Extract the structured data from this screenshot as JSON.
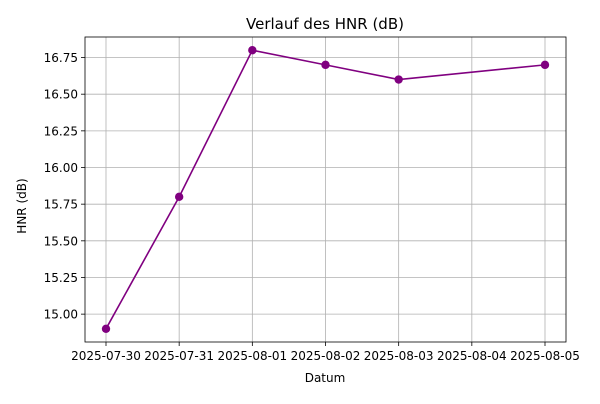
{
  "chart_data": {
    "type": "line",
    "title": "Verlauf des HNR (dB)",
    "xlabel": "Datum",
    "ylabel": "HNR (dB)",
    "x": [
      "2025-07-30",
      "2025-07-31",
      "2025-08-01",
      "2025-08-02",
      "2025-08-03",
      "2025-08-05"
    ],
    "series": [
      {
        "values": [
          14.9,
          15.8,
          16.8,
          16.7,
          16.6,
          16.7
        ],
        "color": "#800080",
        "marker": "circle"
      }
    ],
    "xticks": [
      "2025-07-30",
      "2025-07-31",
      "2025-08-01",
      "2025-08-02",
      "2025-08-03",
      "2025-08-04",
      "2025-08-05"
    ],
    "yticks": [
      "15.00",
      "15.25",
      "15.50",
      "15.75",
      "16.00",
      "16.25",
      "16.50",
      "16.75"
    ],
    "ylim": [
      14.81,
      16.89
    ],
    "grid": true,
    "grid_color": "#b0b0b0"
  }
}
